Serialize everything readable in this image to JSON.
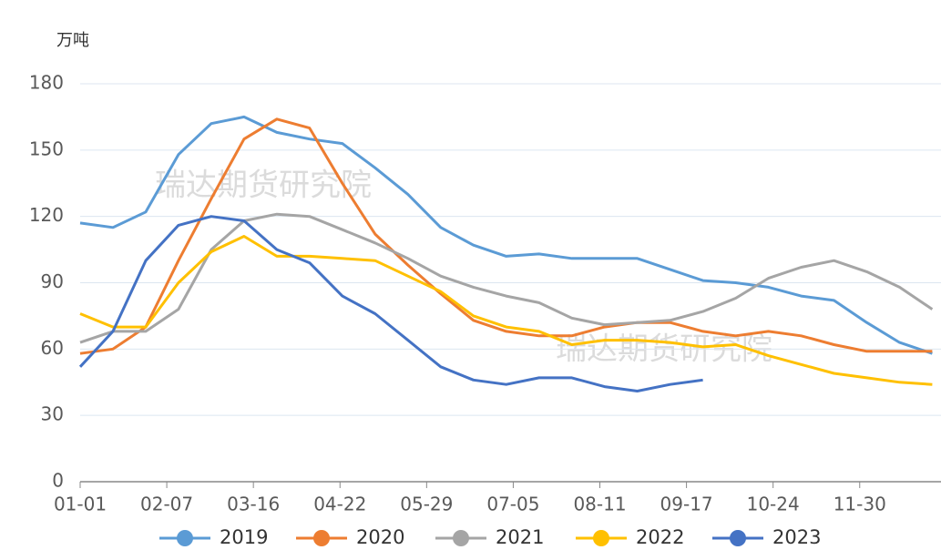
{
  "chart_data": {
    "type": "line",
    "y_label": "万吨",
    "annotations": [
      "瑞达期货研究院",
      "瑞达期货研究院"
    ],
    "x": [
      0,
      14,
      28,
      42,
      56,
      70,
      84,
      98,
      112,
      126,
      140,
      154,
      168,
      182,
      196,
      210,
      224,
      238,
      252,
      266,
      280,
      294,
      308,
      322,
      336,
      350,
      364
    ],
    "xlim": [
      0,
      365
    ],
    "xticks": [
      {
        "value": 0,
        "label": "01-01"
      },
      {
        "value": 37,
        "label": "02-07"
      },
      {
        "value": 74,
        "label": "03-16"
      },
      {
        "value": 111,
        "label": "04-22"
      },
      {
        "value": 148,
        "label": "05-29"
      },
      {
        "value": 185,
        "label": "07-05"
      },
      {
        "value": 222,
        "label": "08-11"
      },
      {
        "value": 259,
        "label": "09-17"
      },
      {
        "value": 296,
        "label": "10-24"
      },
      {
        "value": 333,
        "label": "11-30"
      }
    ],
    "ylim": [
      0,
      180
    ],
    "yticks": [
      0,
      30,
      60,
      90,
      120,
      150,
      180
    ],
    "grid": true,
    "legend": "bottom",
    "series": [
      {
        "name": "2019",
        "color": "#5b9bd5",
        "values": [
          117,
          115,
          122,
          148,
          162,
          165,
          158,
          155,
          153,
          142,
          130,
          115,
          107,
          102,
          103,
          101,
          101,
          101,
          96,
          91,
          90,
          88,
          84,
          82,
          72,
          63,
          58
        ]
      },
      {
        "name": "2020",
        "color": "#ed7d31",
        "values": [
          58,
          60,
          70,
          100,
          128,
          155,
          164,
          160,
          135,
          112,
          98,
          85,
          73,
          68,
          66,
          66,
          70,
          72,
          72,
          68,
          66,
          68,
          66,
          62,
          59,
          59,
          59
        ]
      },
      {
        "name": "2021",
        "color": "#a5a5a5",
        "values": [
          63,
          68,
          68,
          78,
          105,
          118,
          121,
          120,
          114,
          108,
          101,
          93,
          88,
          84,
          81,
          74,
          71,
          72,
          73,
          77,
          83,
          92,
          97,
          100,
          95,
          88,
          78
        ]
      },
      {
        "name": "2022",
        "color": "#ffc000",
        "values": [
          76,
          70,
          70,
          90,
          104,
          111,
          102,
          102,
          101,
          100,
          93,
          86,
          75,
          70,
          68,
          62,
          64,
          64,
          63,
          61,
          62,
          57,
          53,
          49,
          47,
          45,
          44
        ]
      },
      {
        "name": "2023",
        "color": "#4472c4",
        "values": [
          52,
          68,
          100,
          116,
          120,
          118,
          105,
          99,
          84,
          76,
          64,
          52,
          46,
          44,
          47,
          47,
          43,
          41,
          44,
          46,
          null,
          null,
          null,
          null,
          null,
          null,
          null
        ]
      }
    ]
  }
}
